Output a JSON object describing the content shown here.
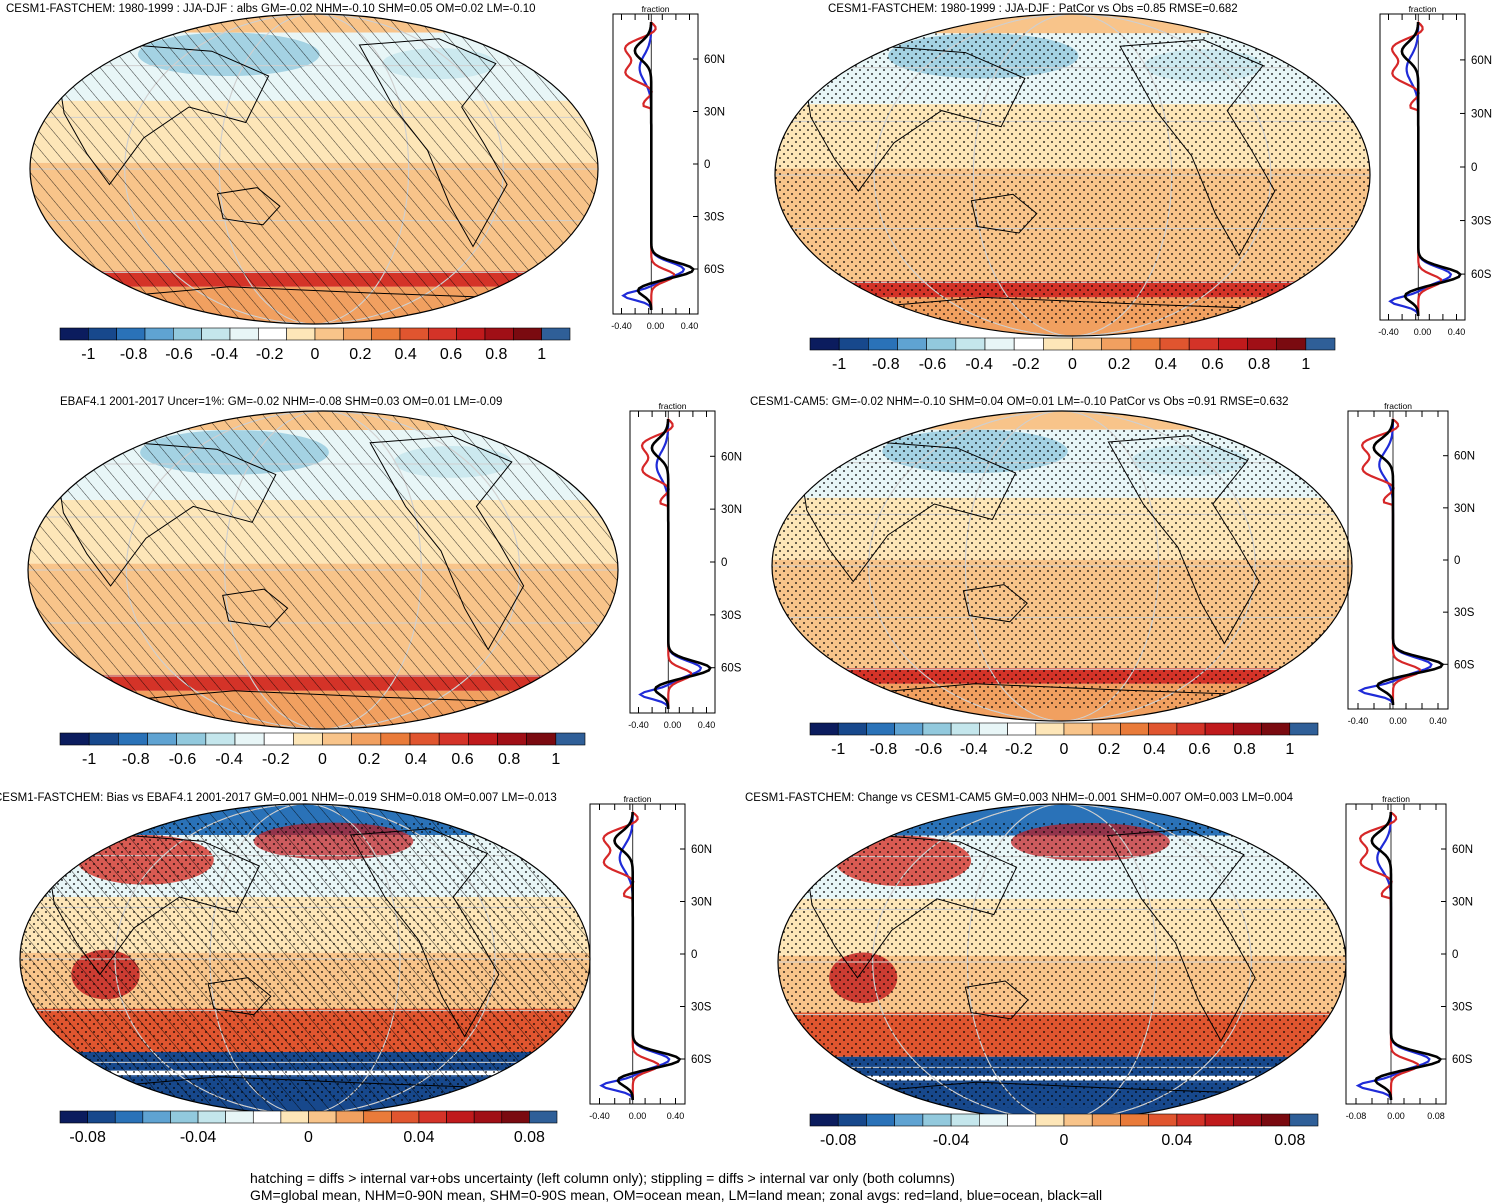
{
  "panels": [
    {
      "id": "p1",
      "title": "CESM1-FASTCHEM: 1980-1999 : JJA-DJF : albs GM=-0.02 NHM=-0.10 SHM=0.05 OM=0.02 LM=-0.10",
      "hatch": true,
      "stipple": false,
      "scale": "abs",
      "colorbar": {
        "ticks": [
          "-1",
          "-0.8",
          "-0.6",
          "-0.4",
          "-0.2",
          "0",
          "0.2",
          "0.4",
          "0.6",
          "0.8",
          "1"
        ]
      },
      "zonal": {
        "label": "fraction",
        "lat_ticks": [
          "60N",
          "30N",
          "0",
          "30S",
          "60S"
        ],
        "x_ticks": [
          "-0.40",
          "0.00",
          "0.40"
        ]
      }
    },
    {
      "id": "p2",
      "title": "CESM1-FASTCHEM: 1980-1999 : JJA-DJF : PatCor vs Obs =0.85 RMSE=0.682",
      "hatch": false,
      "stipple": true,
      "scale": "abs",
      "colorbar": {
        "ticks": [
          "-1",
          "-0.8",
          "-0.6",
          "-0.4",
          "-0.2",
          "0",
          "0.2",
          "0.4",
          "0.6",
          "0.8",
          "1"
        ]
      },
      "zonal": {
        "label": "fraction",
        "lat_ticks": [
          "60N",
          "30N",
          "0",
          "30S",
          "60S"
        ],
        "x_ticks": [
          "-0.40",
          "0.00",
          "0.40"
        ]
      }
    },
    {
      "id": "p3",
      "title": "EBAF4.1 2001-2017 Uncer=1%: GM=-0.02 NHM=-0.08 SHM=0.03 OM=0.01 LM=-0.09",
      "hatch": true,
      "stipple": false,
      "scale": "abs",
      "colorbar": {
        "ticks": [
          "-1",
          "-0.8",
          "-0.6",
          "-0.4",
          "-0.2",
          "0",
          "0.2",
          "0.4",
          "0.6",
          "0.8",
          "1"
        ]
      },
      "zonal": {
        "label": "fraction",
        "lat_ticks": [
          "60N",
          "30N",
          "0",
          "30S",
          "60S"
        ],
        "x_ticks": [
          "-0.40",
          "0.00",
          "0.40"
        ]
      }
    },
    {
      "id": "p4",
      "title": "CESM1-CAM5: GM=-0.02 NHM=-0.10 SHM=0.04 OM=0.01 LM=-0.10 PatCor vs Obs =0.91 RMSE=0.632",
      "hatch": false,
      "stipple": true,
      "scale": "abs",
      "colorbar": {
        "ticks": [
          "-1",
          "-0.8",
          "-0.6",
          "-0.4",
          "-0.2",
          "0",
          "0.2",
          "0.4",
          "0.6",
          "0.8",
          "1"
        ]
      },
      "zonal": {
        "label": "fraction",
        "lat_ticks": [
          "60N",
          "30N",
          "0",
          "30S",
          "60S"
        ],
        "x_ticks": [
          "-0.40",
          "0.00",
          "0.40"
        ]
      }
    },
    {
      "id": "p5",
      "title": "CESM1-FASTCHEM: Bias vs EBAF4.1 2001-2017 GM=0.001 NHM=-0.019 SHM=0.018 OM=0.007 LM=-0.013",
      "hatch": true,
      "stipple": true,
      "scale": "diff",
      "colorbar": {
        "ticks": [
          "-0.08",
          "-0.04",
          "0",
          "0.04",
          "0.08"
        ]
      },
      "zonal": {
        "label": "fraction",
        "lat_ticks": [
          "60N",
          "30N",
          "0",
          "30S",
          "60S"
        ],
        "x_ticks": [
          "-0.40",
          "0.00",
          "0.40"
        ]
      }
    },
    {
      "id": "p6",
      "title": "CESM1-FASTCHEM: Change vs CESM1-CAM5 GM=0.003 NHM=-0.001 SHM=0.007 OM=0.003 LM=0.004",
      "hatch": false,
      "stipple": true,
      "scale": "diff",
      "colorbar": {
        "ticks": [
          "-0.08",
          "-0.04",
          "0",
          "0.04",
          "0.08"
        ]
      },
      "zonal": {
        "label": "fraction",
        "lat_ticks": [
          "60N",
          "30N",
          "0",
          "30S",
          "60S"
        ],
        "x_ticks": [
          "-0.08",
          "0.00",
          "0.08"
        ]
      }
    }
  ],
  "colors": {
    "palette": [
      "#0b1c5e",
      "#17488c",
      "#2a72b8",
      "#5fa3d2",
      "#92c9dd",
      "#c4e6ec",
      "#e8f6f7",
      "#ffffff",
      "#fde6b8",
      "#f8c48a",
      "#f1a060",
      "#e97b3a",
      "#e0552f",
      "#d43328",
      "#c01a1c",
      "#a00f16",
      "#7a0a10",
      "#2f5f98"
    ],
    "land": "#d62728",
    "ocean": "#1f2bd8",
    "all": "#000000"
  },
  "footer": {
    "line1": "hatching = diffs > internal var+obs uncertainty (left column only); stippling = diffs > internal var only (both columns)",
    "line2": "GM=global mean, NHM=0-90N mean, SHM=0-90S mean, OM=ocean mean, LM=land mean; zonal avgs: red=land, blue=ocean, black=all"
  }
}
